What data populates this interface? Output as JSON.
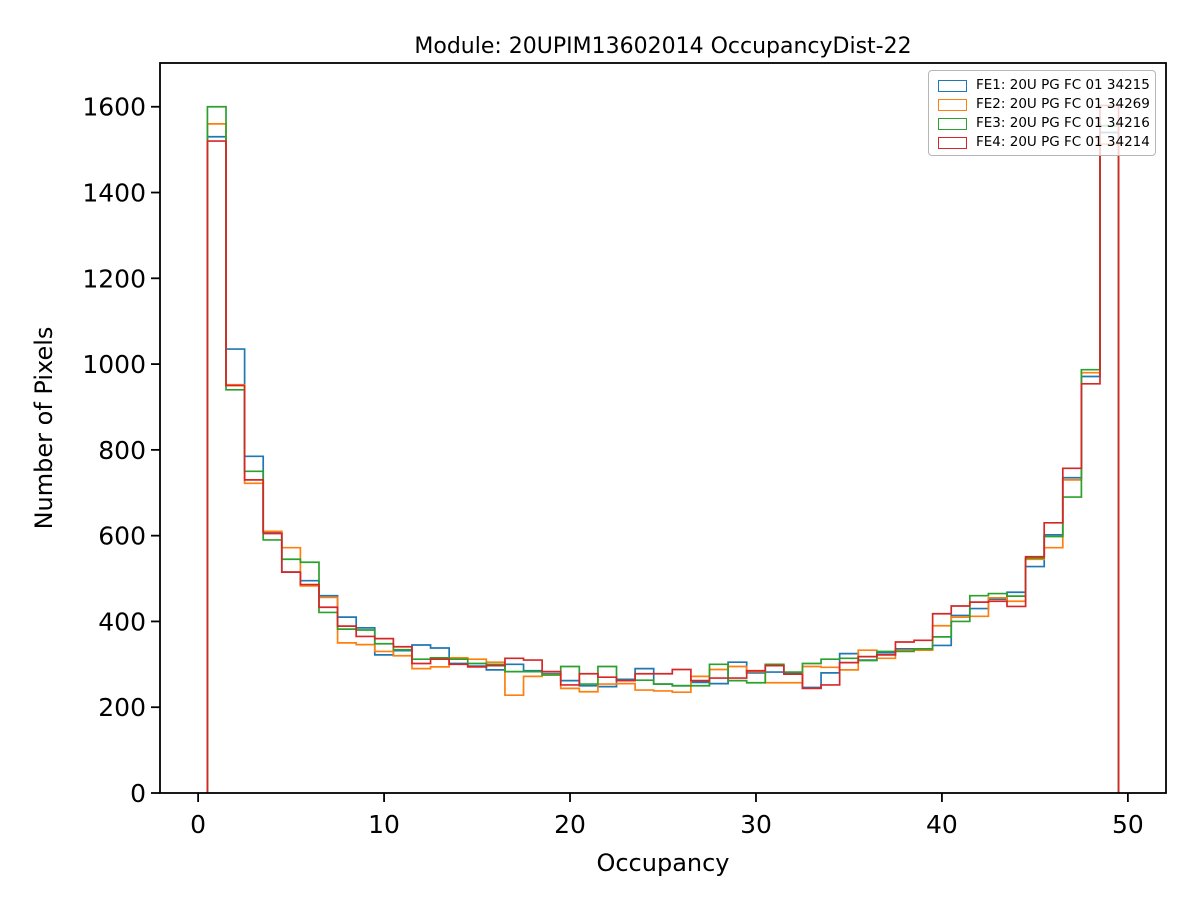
{
  "title": "Module: 20UPIM13602014 OccupancyDist-22",
  "chart_data": {
    "type": "histogram-step",
    "title": "Module: 20UPIM13602014 OccupancyDist-22",
    "xlabel": "Occupancy",
    "ylabel": "Number of Pixels",
    "xlim": [
      -2.05,
      52.05
    ],
    "ylim": [
      0,
      1702
    ],
    "xticks": [
      0,
      10,
      20,
      30,
      40,
      50
    ],
    "yticks": [
      0,
      200,
      400,
      600,
      800,
      1000,
      1200,
      1400,
      1600
    ],
    "grid": false,
    "legend_position": "upper right",
    "bin_start": 0.5,
    "bin_width": 1,
    "bin_count": 49,
    "series": [
      {
        "name": "FE1: 20U PG FC 01 34215",
        "color": "#1f77b4",
        "values": [
          1530,
          1035,
          785,
          608,
          515,
          495,
          460,
          410,
          385,
          322,
          332,
          345,
          338,
          302,
          296,
          287,
          300,
          285,
          278,
          262,
          250,
          248,
          265,
          290,
          254,
          250,
          258,
          255,
          305,
          280,
          282,
          280,
          246,
          280,
          325,
          310,
          327,
          336,
          336,
          344,
          414,
          430,
          452,
          468,
          528,
          602,
          735,
          971,
          1540
        ]
      },
      {
        "name": "FE2: 20U PG FC 01 34269",
        "color": "#ff7f0e",
        "values": [
          1560,
          952,
          722,
          610,
          572,
          483,
          456,
          350,
          346,
          330,
          320,
          290,
          294,
          315,
          312,
          305,
          228,
          272,
          276,
          244,
          236,
          254,
          255,
          240,
          238,
          235,
          272,
          288,
          295,
          283,
          257,
          257,
          295,
          293,
          287,
          333,
          314,
          333,
          333,
          390,
          410,
          412,
          455,
          447,
          545,
          572,
          730,
          980,
          1513
        ]
      },
      {
        "name": "FE3: 20U PG FC 01 34216",
        "color": "#2ca02c",
        "values": [
          1600,
          940,
          750,
          590,
          545,
          538,
          421,
          382,
          380,
          348,
          334,
          312,
          315,
          312,
          302,
          300,
          283,
          283,
          275,
          295,
          254,
          295,
          262,
          263,
          254,
          250,
          250,
          300,
          262,
          257,
          300,
          282,
          302,
          312,
          314,
          309,
          330,
          330,
          336,
          364,
          400,
          460,
          465,
          459,
          548,
          598,
          690,
          987,
          1556
        ]
      },
      {
        "name": "FE4: 20U PG FC 01 34214",
        "color": "#d62728",
        "values": [
          1520,
          950,
          730,
          605,
          515,
          486,
          433,
          389,
          365,
          360,
          341,
          302,
          312,
          300,
          294,
          297,
          314,
          310,
          283,
          252,
          278,
          270,
          262,
          278,
          278,
          288,
          262,
          268,
          268,
          285,
          297,
          277,
          244,
          252,
          304,
          318,
          322,
          352,
          356,
          418,
          436,
          445,
          447,
          435,
          551,
          630,
          757,
          954,
          1603
        ]
      }
    ]
  }
}
